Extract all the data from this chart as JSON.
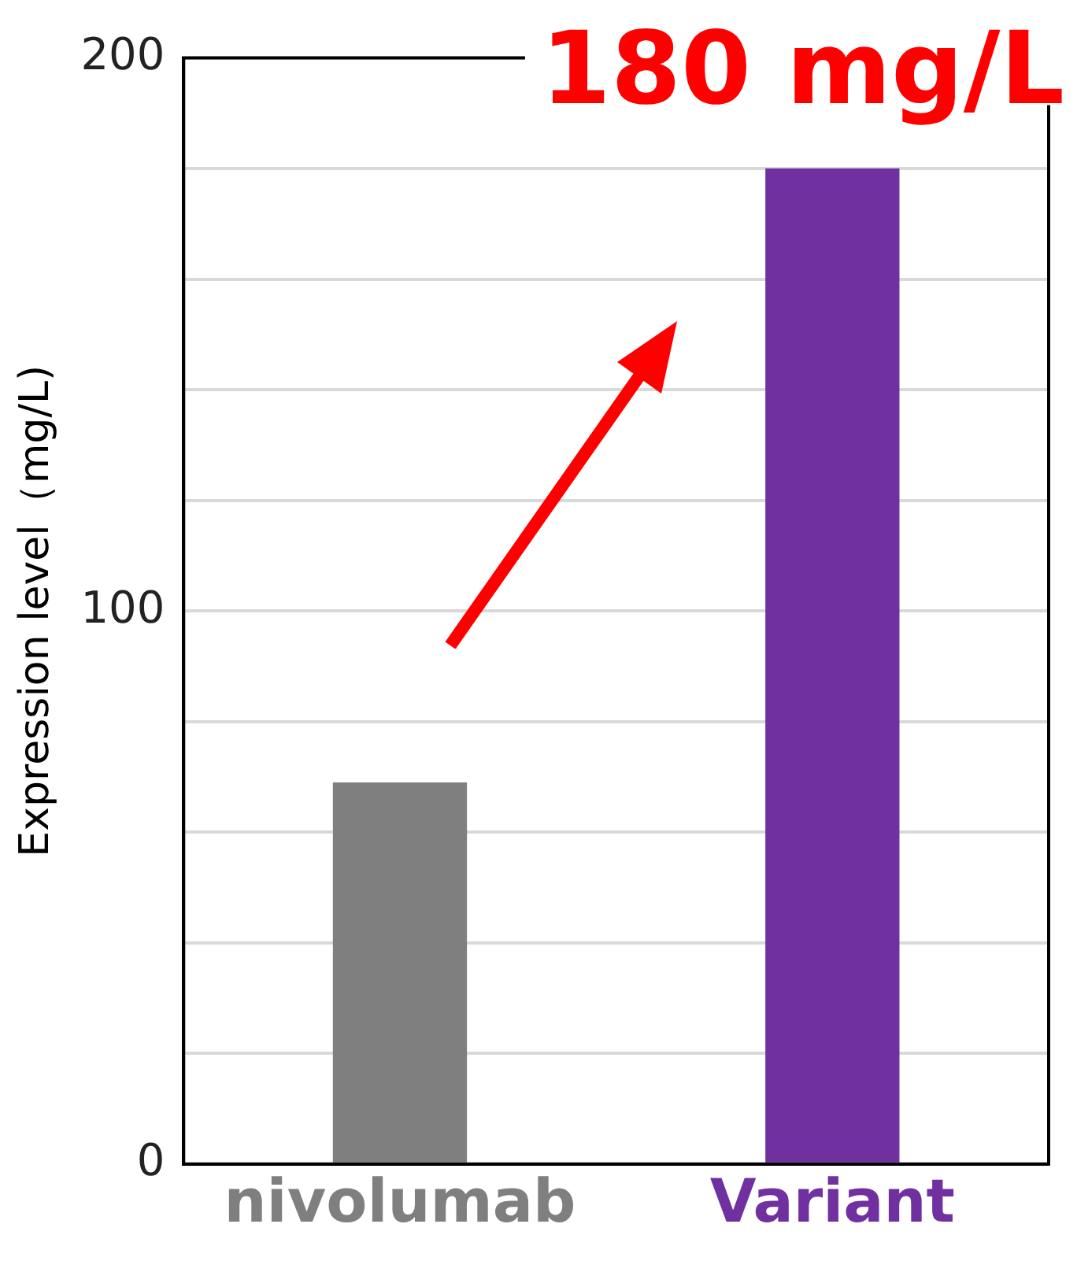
{
  "chart_data": {
    "type": "bar",
    "ylabel": "Expression level（mg/L)",
    "categories": [
      "nivolumab",
      "Variant"
    ],
    "values": [
      69,
      180
    ],
    "colors": [
      "#7f7f7f",
      "#7030a0"
    ],
    "ylim": [
      0,
      200
    ],
    "yticks": [
      0,
      {
        "value": 20,
        "label": null
      },
      {
        "value": 40,
        "label": null
      },
      {
        "value": 60,
        "label": null
      },
      {
        "value": 80,
        "label": null
      },
      100,
      {
        "value": 120,
        "label": null
      },
      {
        "value": 140,
        "label": null
      },
      {
        "value": 160,
        "label": null
      },
      {
        "value": 180,
        "label": null
      },
      200
    ],
    "grid": "y",
    "legend": false,
    "annotations": [
      "180 mg/L"
    ]
  }
}
